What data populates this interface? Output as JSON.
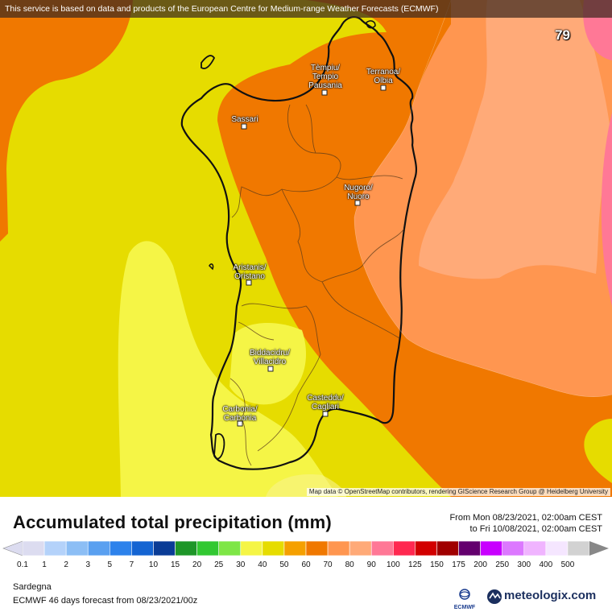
{
  "banner": "This service is based on data and products of the European Centre for Medium-range Weather Forecasts (ECMWF)",
  "frame_number": "79",
  "cities": [
    {
      "name": "Tempiu/\nTempio\nPausania",
      "lines": [
        "Tèmpiu/",
        "Tempio",
        "Pausania"
      ]
    },
    {
      "name": "Terranoa/Olbia",
      "lines": [
        "Terranoa/",
        "Olbia"
      ]
    },
    {
      "name": "Sassari",
      "lines": [
        "Sassari"
      ]
    },
    {
      "name": "Nugoro/Nuoro",
      "lines": [
        "Nugoro/",
        "Nuoro"
      ]
    },
    {
      "name": "Aristanis/Oristano",
      "lines": [
        "Aristanis/",
        "Oristano"
      ]
    },
    {
      "name": "Biddacidru/Villacidro",
      "lines": [
        "Biddacidru/",
        "Villacidro"
      ]
    },
    {
      "name": "Casteddu/Cagliari",
      "lines": [
        "Casteddu/",
        "Cagliari"
      ]
    },
    {
      "name": "Carbonia/Carbonia",
      "lines": [
        "Carbonia/",
        "Carbonia"
      ]
    }
  ],
  "attribution": "Map data © OpenStreetMap contributors, rendering GIScience Research Group @ Heidelberg University",
  "title": "Accumulated total precipitation (mm)",
  "range": {
    "from": "From Mon 08/23/2021, 02:00am CEST",
    "to": "to Fri 10/08/2021, 02:00am CEST"
  },
  "legend": {
    "labels": [
      "0.1",
      "1",
      "2",
      "3",
      "5",
      "7",
      "10",
      "15",
      "20",
      "25",
      "30",
      "40",
      "50",
      "60",
      "70",
      "80",
      "90",
      "100",
      "125",
      "150",
      "175",
      "200",
      "250",
      "300",
      "400",
      "500"
    ],
    "colors": [
      "#dcdcf0",
      "#b4d2fa",
      "#8cbef5",
      "#5aa0f0",
      "#2d82eb",
      "#1464d2",
      "#0a3c96",
      "#1e9628",
      "#32c832",
      "#7ee646",
      "#f5f546",
      "#e6dc00",
      "#f5a000",
      "#f07800",
      "#ff9650",
      "#ffaa78",
      "#ff7896",
      "#ff2850",
      "#d20000",
      "#a00000",
      "#64006e",
      "#c800ff",
      "#dc78ff",
      "#f0b4ff",
      "#f5e6ff",
      "#d2d2d2"
    ]
  },
  "region": "Sardegna",
  "forecast": "ECMWF 46 days forecast from  08/23/2021/00z",
  "ecmwf_logo_text": "ECMWF",
  "brand": "meteologix.com"
}
